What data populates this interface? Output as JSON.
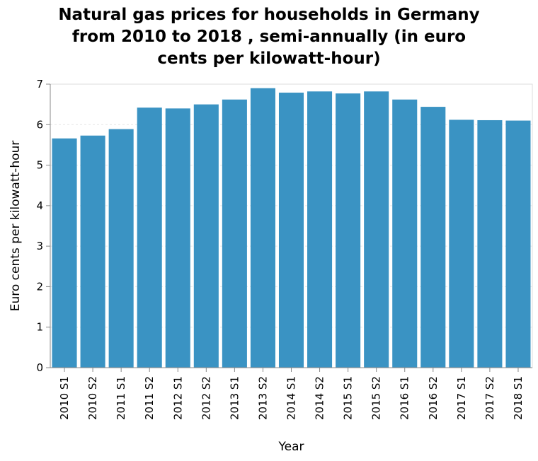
{
  "chart_data": {
    "type": "bar",
    "title_lines": [
      "Natural gas prices for households in Germany",
      "from 2010 to 2018 , semi-annually (in euro",
      "cents per kilowatt-hour)"
    ],
    "xlabel": "Year",
    "ylabel": "Euro cents per kilowatt-hour",
    "categories": [
      "2010 S1",
      "2010 S2",
      "2011 S1",
      "2011 S2",
      "2012 S1",
      "2012 S2",
      "2013 S1",
      "2013 S2",
      "2014 S1",
      "2014 S2",
      "2015 S1",
      "2015 S2",
      "2016 S1",
      "2016 S2",
      "2017 S1",
      "2017 S2",
      "2018 S1"
    ],
    "values": [
      5.66,
      5.73,
      5.89,
      6.42,
      6.4,
      6.5,
      6.62,
      6.9,
      6.79,
      6.82,
      6.77,
      6.82,
      6.62,
      6.44,
      6.12,
      6.11,
      6.1
    ],
    "yticks": [
      0,
      1,
      2,
      3,
      4,
      5,
      6,
      7
    ],
    "ylim": [
      0,
      7
    ],
    "bar_color": "#3a93c3",
    "grid": true
  }
}
